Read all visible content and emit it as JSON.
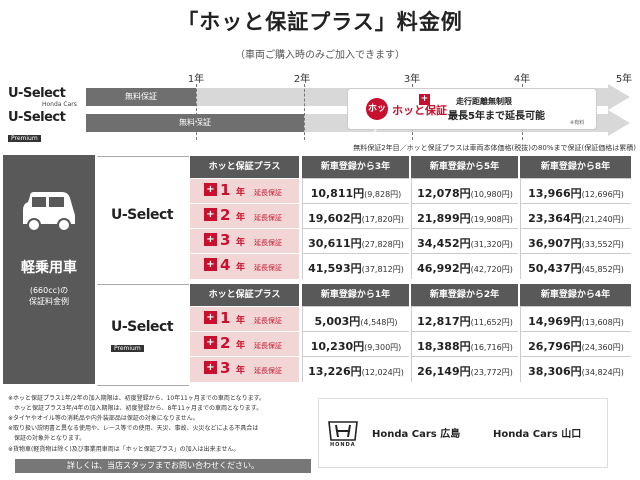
{
  "title": "「ホッと保証プラス」料金例",
  "subtitle": "（車両ご購入時のみご加入できます）",
  "timeline": {
    "years": [
      "1年",
      "2年",
      "3年",
      "4年",
      "5年"
    ],
    "rows": [
      {
        "logo": "U-Select",
        "logo_sub": "Honda Cars",
        "bar_label": "無料保証",
        "premium": ""
      },
      {
        "logo": "U-Select",
        "logo_sub": "",
        "bar_label": "無料保証",
        "premium": "Premium"
      }
    ],
    "plus_badge": "ホッと",
    "plus_name": "ホッと保証",
    "plus_text1": "走行距離無制限",
    "plus_text2": "最長5年まで延長可能",
    "plus_text3": "※有料"
  },
  "note_top": "無料保証2年目／ホッと保証プラスは車両本体価格(税抜)の80%まで保証(保証価格は累積)",
  "category": {
    "name": "軽乗用車",
    "sub1": "(660cc)の",
    "sub2": "保証料金例"
  },
  "sections": [
    {
      "logo": "U-Select",
      "premium": "",
      "header": [
        "ホッと保証プラス",
        "新車登録から3年",
        "新車登録から5年",
        "新車登録から8年"
      ],
      "rows": [
        {
          "num": "1",
          "yr": "年",
          "ext": "延長保証",
          "cells": [
            [
              "10,811円",
              "(9,828円)"
            ],
            [
              "12,078円",
              "(10,980円)"
            ],
            [
              "13,966円",
              "(12,696円)"
            ]
          ]
        },
        {
          "num": "2",
          "yr": "年",
          "ext": "延長保証",
          "cells": [
            [
              "19,602円",
              "(17,820円)"
            ],
            [
              "21,899円",
              "(19,908円)"
            ],
            [
              "23,364円",
              "(21,240円)"
            ]
          ]
        },
        {
          "num": "3",
          "yr": "年",
          "ext": "延長保証",
          "cells": [
            [
              "30,611円",
              "(27,828円)"
            ],
            [
              "34,452円",
              "(31,320円)"
            ],
            [
              "36,907円",
              "(33,552円)"
            ]
          ]
        },
        {
          "num": "4",
          "yr": "年",
          "ext": "延長保証",
          "cells": [
            [
              "41,593円",
              "(37,812円)"
            ],
            [
              "46,992円",
              "(42,720円)"
            ],
            [
              "50,437円",
              "(45,852円)"
            ]
          ]
        }
      ]
    },
    {
      "logo": "U-Select",
      "premium": "Premium",
      "header": [
        "ホッと保証プラス",
        "新車登録から1年",
        "新車登録から2年",
        "新車登録から4年"
      ],
      "rows": [
        {
          "num": "1",
          "yr": "年",
          "ext": "延長保証",
          "cells": [
            [
              "5,003円",
              "(4,548円)"
            ],
            [
              "12,817円",
              "(11,652円)"
            ],
            [
              "14,969円",
              "(13,608円)"
            ]
          ]
        },
        {
          "num": "2",
          "yr": "年",
          "ext": "延長保証",
          "cells": [
            [
              "10,230円",
              "(9,300円)"
            ],
            [
              "18,388円",
              "(16,716円)"
            ],
            [
              "26,796円",
              "(24,360円)"
            ]
          ]
        },
        {
          "num": "3",
          "yr": "年",
          "ext": "延長保証",
          "cells": [
            [
              "13,226円",
              "(12,024円)"
            ],
            [
              "26,149円",
              "(23,772円)"
            ],
            [
              "38,306円",
              "(34,824円)"
            ]
          ]
        }
      ]
    }
  ],
  "footnotes": [
    "※ホッと保証プラス1年/2年の加入期限は、初度登録から、10年11ヶ月までの車両となります。",
    "　ホッと保証プラス3年/4年の加入期限は、初度登録から、8年11ヶ月までの車両となります。",
    "※タイヤやオイル等の消耗品や内外装部品は保証の対象になりません。",
    "※取り扱い説明書と異なる使用や、レース等での使用、天災、事故、火災などによる不具合は",
    "　保証の対象外となります。",
    "※貨物車(軽貨物は除く)及び事業用車両は「ホッと保証プラス」の加入は出来ません。"
  ],
  "contact": "詳しくは、当店スタッフまでお問い合わせください。",
  "dealer": {
    "brand": "HONDA",
    "name1": "Honda Cars 広島",
    "name2": "Honda Cars 山口"
  },
  "colors": {
    "accent": "#c8102e",
    "dark": "#595959",
    "pink": "#f2d6d6",
    "bar": "#d8d8d8"
  }
}
